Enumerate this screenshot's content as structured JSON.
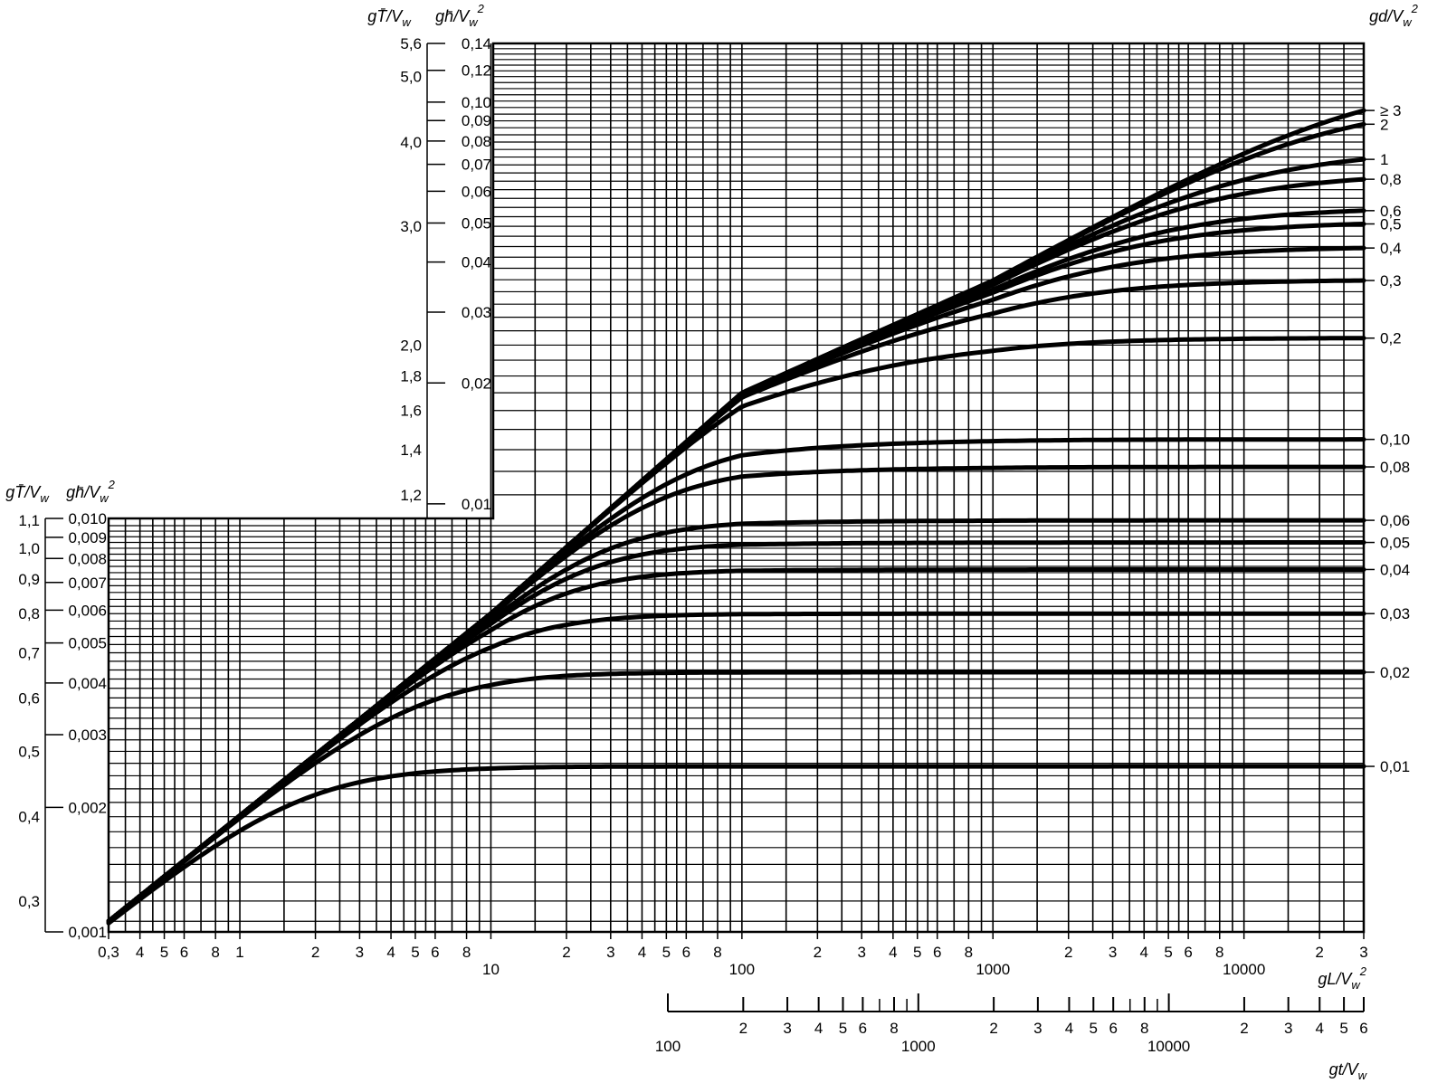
{
  "chart_data": {
    "type": "line",
    "title": "",
    "x_axis": {
      "label": "gL/V_w²",
      "scale": "log",
      "range": [
        0.3,
        30000
      ],
      "tick_labels": [
        {
          "v": 0.3,
          "t": "0,3"
        },
        {
          "v": 0.4,
          "t": "4"
        },
        {
          "v": 0.5,
          "t": "5"
        },
        {
          "v": 0.6,
          "t": "6"
        },
        {
          "v": 0.8,
          "t": "8"
        },
        {
          "v": 1,
          "t": "1"
        },
        {
          "v": 2,
          "t": "2"
        },
        {
          "v": 3,
          "t": "3"
        },
        {
          "v": 4,
          "t": "4"
        },
        {
          "v": 5,
          "t": "5"
        },
        {
          "v": 6,
          "t": "6"
        },
        {
          "v": 8,
          "t": "8"
        },
        {
          "v": 10,
          "t": "10"
        },
        {
          "v": 20,
          "t": "2"
        },
        {
          "v": 30,
          "t": "3"
        },
        {
          "v": 40,
          "t": "4"
        },
        {
          "v": 50,
          "t": "5"
        },
        {
          "v": 60,
          "t": "6"
        },
        {
          "v": 80,
          "t": "8"
        },
        {
          "v": 100,
          "t": "100"
        },
        {
          "v": 200,
          "t": "2"
        },
        {
          "v": 300,
          "t": "3"
        },
        {
          "v": 400,
          "t": "4"
        },
        {
          "v": 500,
          "t": "5"
        },
        {
          "v": 600,
          "t": "6"
        },
        {
          "v": 800,
          "t": "8"
        },
        {
          "v": 1000,
          "t": "1000"
        },
        {
          "v": 2000,
          "t": "2"
        },
        {
          "v": 3000,
          "t": "3"
        },
        {
          "v": 4000,
          "t": "4"
        },
        {
          "v": 5000,
          "t": "5"
        },
        {
          "v": 6000,
          "t": "6"
        },
        {
          "v": 8000,
          "t": "8"
        },
        {
          "v": 10000,
          "t": "10000"
        },
        {
          "v": 20000,
          "t": "2"
        },
        {
          "v": 30000,
          "t": "3"
        }
      ]
    },
    "t_axis": {
      "label": "gt/V_w",
      "scale": "log",
      "range": [
        100,
        60000
      ],
      "tick_labels": [
        {
          "v": 100,
          "t": "100"
        },
        {
          "v": 200,
          "t": "2"
        },
        {
          "v": 300,
          "t": "3"
        },
        {
          "v": 400,
          "t": "4"
        },
        {
          "v": 500,
          "t": "5"
        },
        {
          "v": 600,
          "t": "6"
        },
        {
          "v": 800,
          "t": "8"
        },
        {
          "v": 1000,
          "t": "1000"
        },
        {
          "v": 2000,
          "t": "2"
        },
        {
          "v": 3000,
          "t": "3"
        },
        {
          "v": 4000,
          "t": "4"
        },
        {
          "v": 5000,
          "t": "5"
        },
        {
          "v": 6000,
          "t": "6"
        },
        {
          "v": 8000,
          "t": "8"
        },
        {
          "v": 10000,
          "t": "10000"
        },
        {
          "v": 20000,
          "t": "2"
        },
        {
          "v": 30000,
          "t": "3"
        },
        {
          "v": 40000,
          "t": "4"
        },
        {
          "v": 50000,
          "t": "5"
        },
        {
          "v": 60000,
          "t": "6"
        }
      ],
      "minor_values": [
        700,
        900,
        7000,
        9000
      ]
    },
    "lower_panel": {
      "x_range": [
        0.3,
        30000
      ],
      "y_period": {
        "label": "gT̄/V_w",
        "scale": "log",
        "range": [
          0.27,
          1.1
        ],
        "tick_labels": [
          {
            "v": 1.1,
            "t": "1,1"
          },
          {
            "v": 1.0,
            "t": "1,0"
          },
          {
            "v": 0.9,
            "t": "0,9"
          },
          {
            "v": 0.8,
            "t": "0,8"
          },
          {
            "v": 0.7,
            "t": "0,7"
          },
          {
            "v": 0.6,
            "t": "0,6"
          },
          {
            "v": 0.5,
            "t": "0,5"
          },
          {
            "v": 0.4,
            "t": "0,4"
          },
          {
            "v": 0.3,
            "t": "0,3"
          }
        ]
      },
      "y_height": {
        "label": "gh̄/V_w²",
        "scale": "log",
        "range": [
          0.001,
          0.01
        ],
        "tick_labels": [
          {
            "v": 0.01,
            "t": "0,010"
          },
          {
            "v": 0.009,
            "t": "0,009"
          },
          {
            "v": 0.008,
            "t": "0,008"
          },
          {
            "v": 0.007,
            "t": "0,007"
          },
          {
            "v": 0.006,
            "t": "0,006"
          },
          {
            "v": 0.005,
            "t": "0,005"
          },
          {
            "v": 0.004,
            "t": "0,004"
          },
          {
            "v": 0.003,
            "t": "0,003"
          },
          {
            "v": 0.002,
            "t": "0,002"
          },
          {
            "v": 0.001,
            "t": "0,001"
          }
        ]
      }
    },
    "upper_panel": {
      "x_range": [
        10,
        30000
      ],
      "y_period": {
        "label": "gT̄/V_w",
        "scale": "log",
        "range": [
          1.1,
          5.6
        ],
        "tick_labels": [
          {
            "v": 5.6,
            "t": "5,6"
          },
          {
            "v": 5.0,
            "t": "5,0"
          },
          {
            "v": 4.0,
            "t": "4,0"
          },
          {
            "v": 3.0,
            "t": "3,0"
          },
          {
            "v": 2.0,
            "t": "2,0"
          },
          {
            "v": 1.8,
            "t": "1,8"
          },
          {
            "v": 1.6,
            "t": "1,6"
          },
          {
            "v": 1.4,
            "t": "1,4"
          },
          {
            "v": 1.2,
            "t": "1,2"
          }
        ]
      },
      "y_height": {
        "label": "gh̄/V_w²",
        "scale": "log",
        "range": [
          0.0092,
          0.14
        ],
        "tick_labels": [
          {
            "v": 0.14,
            "t": "0,14"
          },
          {
            "v": 0.12,
            "t": "0,12"
          },
          {
            "v": 0.1,
            "t": "0,10"
          },
          {
            "v": 0.09,
            "t": "0,09"
          },
          {
            "v": 0.08,
            "t": "0,08"
          },
          {
            "v": 0.07,
            "t": "0,07"
          },
          {
            "v": 0.06,
            "t": "0,06"
          },
          {
            "v": 0.05,
            "t": "0,05"
          },
          {
            "v": 0.04,
            "t": "0,04"
          },
          {
            "v": 0.03,
            "t": "0,03"
          },
          {
            "v": 0.02,
            "t": "0,02"
          },
          {
            "v": 0.01,
            "t": "0,01"
          }
        ]
      }
    },
    "series_label": "gd/V_w²",
    "series": [
      {
        "name": "≥ 3",
        "asymptote_gT_over_V": 5.0
      },
      {
        "name": "2",
        "asymptote_gT_over_V": 4.6
      },
      {
        "name": "1",
        "asymptote_gT_over_V": 3.9
      },
      {
        "name": "0,8",
        "asymptote_gT_over_V": 3.6
      },
      {
        "name": "0,6",
        "asymptote_gT_over_V": 3.2
      },
      {
        "name": "0,5",
        "asymptote_gT_over_V": 3.05
      },
      {
        "name": "0,4",
        "asymptote_gT_over_V": 2.8
      },
      {
        "name": "0,3",
        "asymptote_gT_over_V": 2.5
      },
      {
        "name": "0,2",
        "asymptote_gT_over_V": 2.05
      },
      {
        "name": "0,10",
        "asymptote_gT_over_V": 1.45
      },
      {
        "name": "0,08",
        "asymptote_gT_over_V": 1.32
      },
      {
        "name": "0,06",
        "asymptote_gT_over_V": 1.1
      },
      {
        "name": "0,05",
        "asymptote_gT_over_V": 1.02
      },
      {
        "name": "0,04",
        "asymptote_gT_over_V": 0.93
      },
      {
        "name": "0,03",
        "asymptote_gT_over_V": 0.8
      },
      {
        "name": "0,02",
        "asymptote_gT_over_V": 0.655
      },
      {
        "name": "0,01",
        "asymptote_gT_over_V": 0.475
      }
    ],
    "envelope_gT_over_V": {
      "at_x_0_3": 0.28,
      "at_x_10": 0.8,
      "at_x_100": 1.7,
      "at_x_1000": 2.5,
      "at_x_30000": 5.0
    },
    "grid": true,
    "legend_placement": "right"
  }
}
